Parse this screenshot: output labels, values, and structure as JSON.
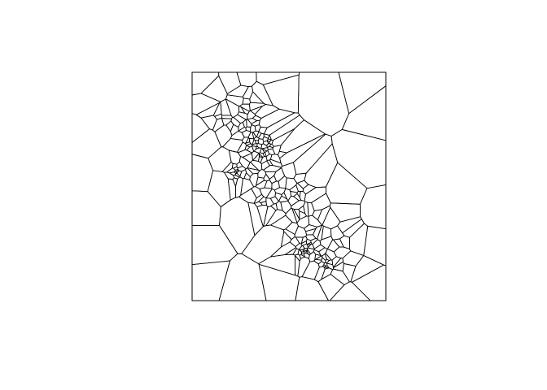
{
  "diagram": {
    "type": "voronoi-tessellation",
    "frame_color": "#000000",
    "edge_color": "#000000",
    "background_color": "#ffffff"
  }
}
